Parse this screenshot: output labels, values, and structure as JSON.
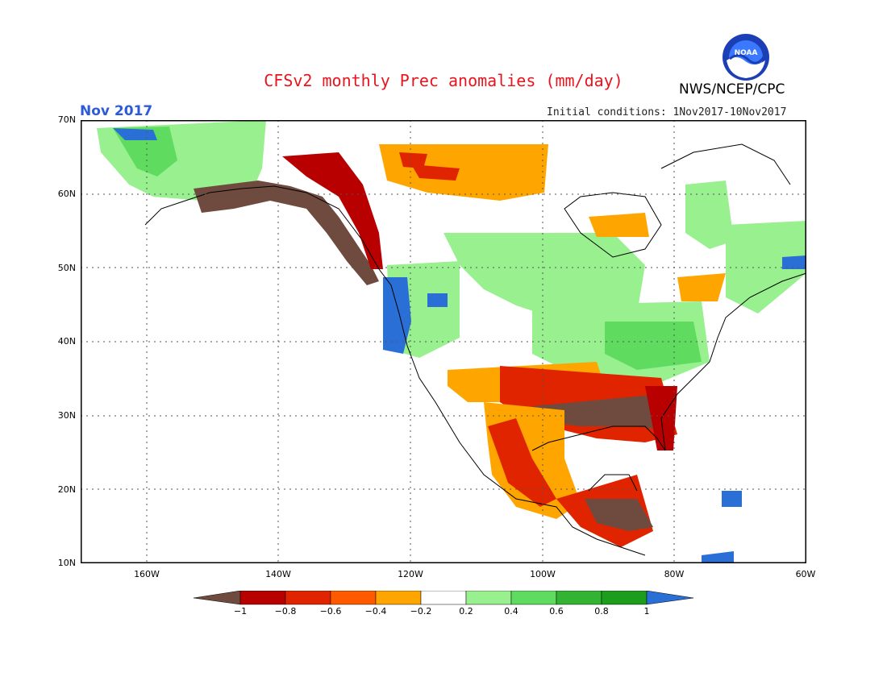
{
  "title": "CFSv2 monthly Prec anomalies (mm/day)",
  "agency": "NWS/NCEP/CPC",
  "logo_text": "NOAA",
  "forecast_month": "Nov 2017",
  "initial_conditions": "Initial conditions: 1Nov2017-10Nov2017",
  "latitude_labels": [
    "70N",
    "60N",
    "50N",
    "40N",
    "30N",
    "20N",
    "10N"
  ],
  "longitude_labels": [
    "160W",
    "140W",
    "120W",
    "100W",
    "80W",
    "60W"
  ],
  "colorbar": {
    "labels": [
      "−1",
      "−0.8",
      "−0.6",
      "−0.4",
      "−0.2",
      "0.2",
      "0.4",
      "0.6",
      "0.8",
      "1"
    ],
    "colors": [
      "#6e4b3e",
      "#b80000",
      "#e02400",
      "#ff5a00",
      "#ffa500",
      "#ffffff",
      "#98f08f",
      "#5fdc5f",
      "#32b432",
      "#1c9e1c",
      "#2a6fd6"
    ]
  },
  "map_extent": {
    "lon_min": -170,
    "lon_max": -60,
    "lat_min": 10,
    "lat_max": 70
  }
}
